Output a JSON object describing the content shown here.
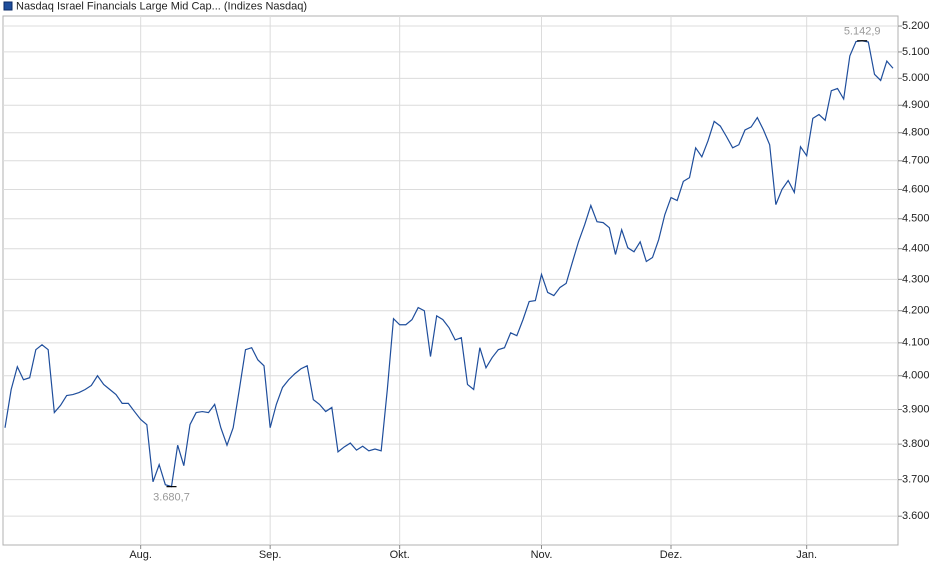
{
  "chart_data": {
    "type": "line",
    "categories": [
      null,
      null,
      null,
      null,
      null,
      null,
      null,
      null,
      null,
      null,
      null,
      null,
      null,
      null,
      null,
      null,
      null,
      null,
      null,
      null,
      null,
      null,
      "Aug.",
      null,
      null,
      null,
      null,
      null,
      null,
      null,
      null,
      null,
      null,
      null,
      null,
      null,
      null,
      null,
      null,
      null,
      null,
      null,
      null,
      "Sep.",
      null,
      null,
      null,
      null,
      null,
      null,
      null,
      null,
      null,
      null,
      null,
      null,
      null,
      null,
      null,
      null,
      null,
      null,
      null,
      null,
      "Okt.",
      null,
      null,
      null,
      null,
      null,
      null,
      null,
      null,
      null,
      null,
      null,
      null,
      null,
      null,
      null,
      null,
      null,
      null,
      null,
      null,
      null,
      null,
      "Nov.",
      null,
      null,
      null,
      null,
      null,
      null,
      null,
      null,
      null,
      null,
      null,
      null,
      null,
      null,
      null,
      null,
      null,
      null,
      null,
      null,
      "Dez.",
      null,
      null,
      null,
      null,
      null,
      null,
      null,
      null,
      null,
      null,
      null,
      null,
      null,
      null,
      null,
      null,
      null,
      null,
      null,
      null,
      null,
      "Jan.",
      null,
      null,
      null,
      null,
      null,
      null,
      null,
      null,
      null,
      null,
      null,
      null,
      null,
      null
    ],
    "series": [
      {
        "name": "Nasdaq Israel Financials Large Mid Cap... (Indizes Nasdaq)",
        "color": "#1f4e9c",
        "values": [
          3847,
          3959,
          4027,
          3988,
          3994,
          4079,
          4094,
          4079,
          3891,
          3912,
          3941,
          3944,
          3950,
          3959,
          3971,
          4000,
          3974,
          3959,
          3944,
          3918,
          3918,
          3894,
          3871,
          3856,
          3694,
          3742,
          3686,
          3680.7,
          3797,
          3739,
          3856,
          3891,
          3894,
          3891,
          3915,
          3847,
          3797,
          3847,
          3959,
          4079,
          4085,
          4048,
          4030,
          3847,
          3915,
          3965,
          3988,
          4006,
          4021,
          4030,
          3929,
          3915,
          3894,
          3906,
          3778,
          3792,
          3803,
          3783,
          3794,
          3781,
          3786,
          3781,
          3959,
          4175,
          4156,
          4156,
          4172,
          4210,
          4200,
          4058,
          4184,
          4172,
          4147,
          4109,
          4116,
          3974,
          3959,
          4085,
          4024,
          4055,
          4079,
          4085,
          4131,
          4122,
          4172,
          4229,
          4232,
          4316,
          4258,
          4248,
          4274,
          4287,
          4355,
          4423,
          4480,
          4545,
          4490,
          4487,
          4470,
          4381,
          4463,
          4403,
          4390,
          4423,
          4358,
          4371,
          4430,
          4514,
          4572,
          4562,
          4628,
          4641,
          4746,
          4714,
          4771,
          4841,
          4824,
          4786,
          4746,
          4757,
          4810,
          4821,
          4855,
          4810,
          4757,
          4548,
          4600,
          4631,
          4590,
          4750,
          4718,
          4852,
          4866,
          4845,
          4954,
          4962,
          4923,
          5085,
          5140,
          5142.9,
          5138,
          5015,
          4992,
          5065,
          5038
        ]
      }
    ],
    "max": {
      "value": 5142.9,
      "label": "5.142,9"
    },
    "min": {
      "value": 3680.7,
      "label": "3.680,7"
    },
    "ylim": [
      3523,
      5263
    ],
    "log_scale": true,
    "grid": true,
    "legend": "top-left",
    "yticks": [
      {
        "value": 3600,
        "label": "3.600"
      },
      {
        "value": 3700,
        "label": "3.700"
      },
      {
        "value": 3800,
        "label": "3.800"
      },
      {
        "value": 3900,
        "label": "3.900"
      },
      {
        "value": 4000,
        "label": "4.000"
      },
      {
        "value": 4100,
        "label": "4.100"
      },
      {
        "value": 4200,
        "label": "4.200"
      },
      {
        "value": 4300,
        "label": "4.300"
      },
      {
        "value": 4400,
        "label": "4.400"
      },
      {
        "value": 4500,
        "label": "4.500"
      },
      {
        "value": 4600,
        "label": "4.600"
      },
      {
        "value": 4700,
        "label": "4.700"
      },
      {
        "value": 4800,
        "label": "4.800"
      },
      {
        "value": 4900,
        "label": "4.900"
      },
      {
        "value": 5000,
        "label": "5.000"
      },
      {
        "value": 5100,
        "label": "5.100"
      },
      {
        "value": 5200,
        "label": "5.200"
      }
    ]
  }
}
